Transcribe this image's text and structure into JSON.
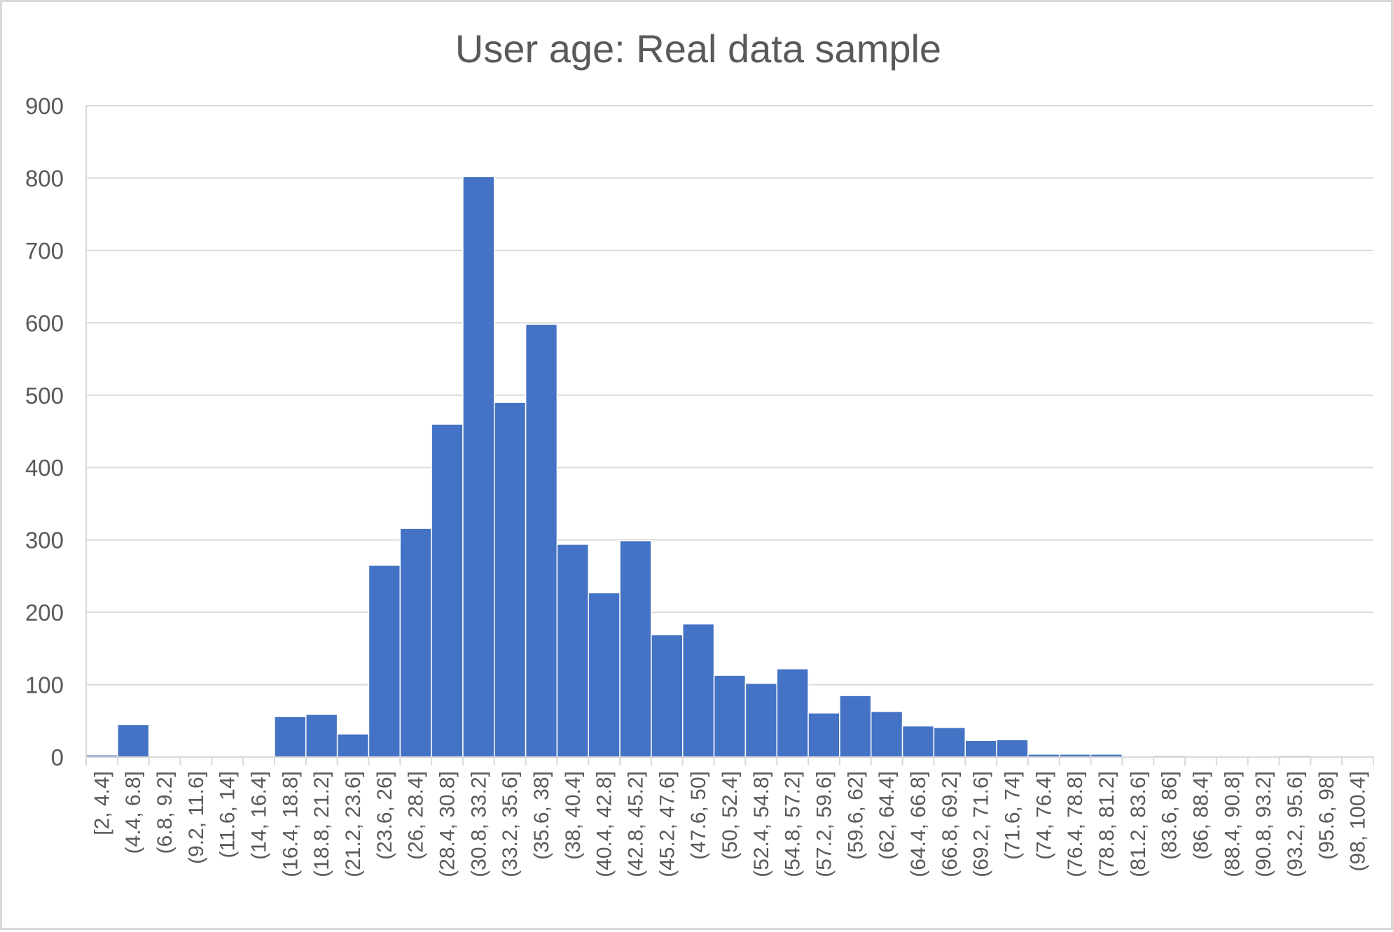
{
  "chart_data": {
    "type": "bar",
    "title": "User age: Real data sample",
    "xlabel": "",
    "ylabel": "",
    "ylim": [
      0,
      900
    ],
    "yticks": [
      0,
      100,
      200,
      300,
      400,
      500,
      600,
      700,
      800,
      900
    ],
    "grid": true,
    "legend": "none",
    "bar_color": "#4472c4",
    "categories": [
      "[2, 4.4]",
      "(4.4, 6.8]",
      "(6.8, 9.2]",
      "(9.2, 11.6]",
      "(11.6, 14]",
      "(14, 16.4]",
      "(16.4, 18.8]",
      "(18.8, 21.2]",
      "(21.2, 23.6]",
      "(23.6, 26]",
      "(26, 28.4]",
      "(28.4, 30.8]",
      "(30.8, 33.2]",
      "(33.2, 35.6]",
      "(35.6, 38]",
      "(38, 40.4]",
      "(40.4, 42.8]",
      "(42.8, 45.2]",
      "(45.2, 47.6]",
      "(47.6, 50]",
      "(50, 52.4]",
      "(52.4, 54.8]",
      "(54.8, 57.2]",
      "(57.2, 59.6]",
      "(59.6, 62]",
      "(62, 64.4]",
      "(64.4, 66.8]",
      "(66.8, 69.2]",
      "(69.2, 71.6]",
      "(71.6, 74]",
      "(74, 76.4]",
      "(76.4, 78.8]",
      "(78.8, 81.2]",
      "(81.2, 83.6]",
      "(83.6, 86]",
      "(86, 88.4]",
      "(88.4, 90.8]",
      "(90.8, 93.2]",
      "(93.2, 95.6]",
      "(95.6, 98]",
      "(98, 100.4]"
    ],
    "values": [
      3,
      45,
      0,
      0,
      0,
      0,
      56,
      59,
      32,
      265,
      316,
      460,
      802,
      490,
      598,
      294,
      227,
      299,
      169,
      184,
      113,
      102,
      122,
      61,
      85,
      63,
      43,
      41,
      23,
      24,
      4,
      4,
      4,
      0,
      2,
      0,
      0,
      0,
      2,
      0,
      0
    ]
  }
}
